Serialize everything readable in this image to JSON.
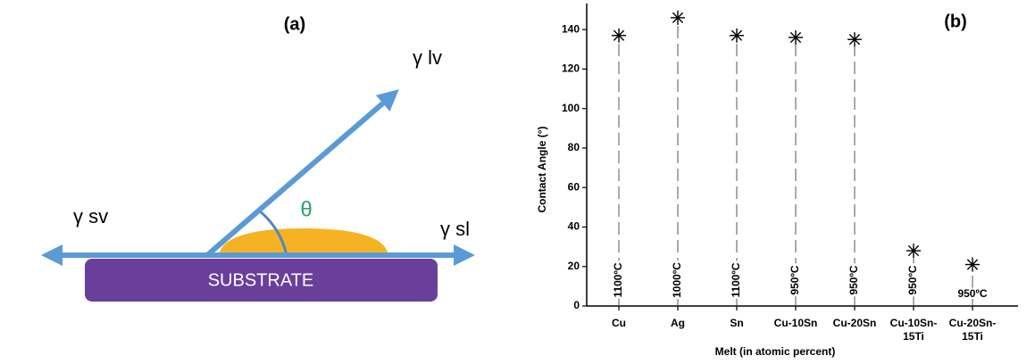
{
  "diagram": {
    "label": "(a)",
    "gamma_lv": "γ lv",
    "gamma_sv": "γ sv",
    "gamma_sl": "γ sl",
    "theta": "θ",
    "substrate": "SUBSTRATE"
  },
  "chart_data": {
    "type": "scatter",
    "label": "(b)",
    "x_label": "Melt (in atomic percent)",
    "y_label": "Contact Angle (°)",
    "categories": [
      "Cu",
      "Ag",
      "Sn",
      "Cu-10Sn",
      "Cu-20Sn",
      "Cu-10Sn-\n15Ti",
      "Cu-20Sn-\n15Ti"
    ],
    "values": [
      137,
      146,
      137,
      136,
      135,
      28,
      21
    ],
    "annotations": [
      "1100ºC",
      "1000ºC",
      "1100ºC",
      "950ºC",
      "950ºC",
      "950ºC",
      "950ºC"
    ],
    "annotation_rotated": [
      true,
      true,
      true,
      true,
      true,
      true,
      false
    ],
    "color": "#000000",
    "ylim": [
      0,
      150
    ],
    "yticks": [
      0,
      20,
      40,
      60,
      80,
      100,
      120,
      140
    ]
  }
}
